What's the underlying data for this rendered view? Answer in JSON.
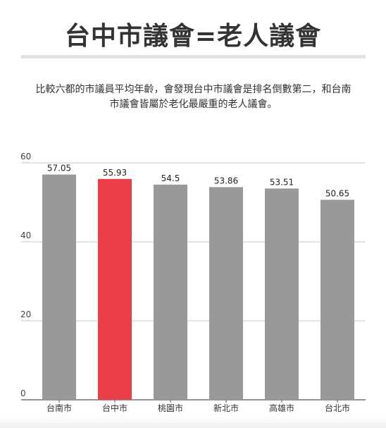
{
  "header": {
    "title": "台中市議會=老人議會",
    "subtitle_line1": "比較六都的市議員平均年齡，會發現台中市議會是排名倒數第二，和台南",
    "subtitle_line2": "市議會皆屬於老化最嚴重的老人議會。"
  },
  "colors": {
    "bar_default": "#999999",
    "bar_highlight": "#ea3f49",
    "grid": "#c8c8c8",
    "axis": "#555555"
  },
  "chart_data": {
    "type": "bar",
    "categories": [
      "台南市",
      "台中市",
      "桃園市",
      "新北市",
      "高雄市",
      "台北市"
    ],
    "values": [
      57.05,
      55.93,
      54.5,
      53.86,
      53.51,
      50.65
    ],
    "value_labels": [
      "57.05",
      "55.93",
      "54.5",
      "53.86",
      "53.51",
      "50.65"
    ],
    "highlight": "台中市",
    "yticks": [
      0,
      20,
      40,
      60
    ],
    "ylim": [
      0,
      60
    ],
    "grid": true,
    "title": "",
    "xlabel": "",
    "ylabel": ""
  }
}
